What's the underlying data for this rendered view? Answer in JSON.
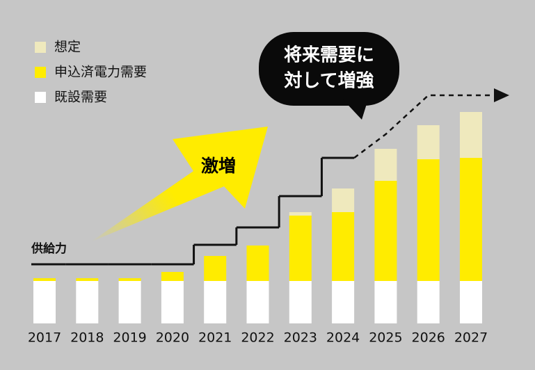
{
  "chart_data": {
    "type": "bar",
    "stacked": true,
    "categories": [
      "2017",
      "2018",
      "2019",
      "2020",
      "2021",
      "2022",
      "2023",
      "2024",
      "2025",
      "2026",
      "2027"
    ],
    "series": [
      {
        "name": "既設需要",
        "color": "#ffffff",
        "values": [
          61,
          61,
          61,
          61,
          61,
          61,
          61,
          61,
          61,
          61,
          61
        ]
      },
      {
        "name": "申込済電力需要",
        "color": "#ffec00",
        "values": [
          4,
          4,
          4,
          13,
          36,
          51,
          94,
          99,
          144,
          175,
          177
        ]
      },
      {
        "name": "想定",
        "color": "#efe9bd",
        "values": [
          0,
          0,
          0,
          0,
          0,
          0,
          5,
          34,
          46,
          49,
          66
        ]
      }
    ],
    "line": {
      "name": "供給力",
      "color": "#111111",
      "values": [
        85,
        85,
        85,
        85,
        113,
        138,
        183,
        238,
        272,
        328,
        328
      ],
      "styles": [
        "solid",
        "solid",
        "solid",
        "solid",
        "solid",
        "solid",
        "solid",
        "solid",
        "dashed",
        "dashed",
        "dashed"
      ]
    },
    "ylim": [
      0,
      330
    ],
    "annotations": {
      "arrow": "激増",
      "callout": [
        "将来需要に",
        "対して増強"
      ]
    }
  }
}
